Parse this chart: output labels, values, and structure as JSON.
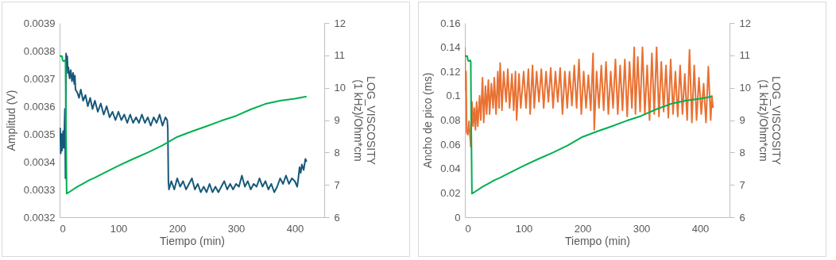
{
  "chart_data": [
    {
      "type": "line",
      "xlabel": "Tiempo (min)",
      "ylabel": "Amplitud (V)",
      "y2label": "LOG_VISCOSITY\n(1 kHz)/Ohm*cm",
      "xlim": [
        0,
        450
      ],
      "xticks": [
        0,
        100,
        200,
        300,
        400
      ],
      "ylim": [
        0.0032,
        0.0039
      ],
      "yticks": [
        0.0032,
        0.0033,
        0.0034,
        0.0035,
        0.0036,
        0.0037,
        0.0038,
        0.0039
      ],
      "y2lim": [
        6,
        12
      ],
      "y2ticks": [
        6,
        7,
        8,
        9,
        10,
        11,
        12
      ],
      "legend": false,
      "grid": false,
      "series": [
        {
          "color": "#17587a",
          "x": [
            0,
            1,
            2,
            3,
            4,
            5,
            6,
            7,
            8,
            9,
            10,
            10.5,
            11,
            12,
            13,
            14,
            15,
            17,
            19,
            21,
            23,
            25,
            26,
            27,
            30,
            33,
            36,
            40,
            44,
            48,
            52,
            56,
            60,
            65,
            70,
            75,
            80,
            85,
            90,
            95,
            100,
            105,
            110,
            115,
            120,
            125,
            130,
            135,
            140,
            145,
            150,
            155,
            160,
            165,
            170,
            175,
            180,
            183,
            184,
            185,
            186,
            190,
            195,
            200,
            205,
            210,
            215,
            220,
            225,
            230,
            235,
            240,
            245,
            250,
            255,
            260,
            265,
            270,
            275,
            280,
            285,
            290,
            295,
            300,
            305,
            310,
            315,
            320,
            325,
            330,
            335,
            340,
            345,
            350,
            355,
            360,
            365,
            370,
            375,
            380,
            385,
            390,
            395,
            400,
            404,
            406,
            408,
            410,
            412,
            415,
            418,
            420
          ],
          "values": [
            0.00348,
            0.00352,
            0.00343,
            0.0035,
            0.00344,
            0.00347,
            0.00351,
            0.00345,
            0.0035,
            0.00359,
            0.00334,
            0.00345,
            0.00379,
            0.00376,
            0.00378,
            0.00372,
            0.00374,
            0.0037,
            0.00373,
            0.00369,
            0.00372,
            0.00368,
            0.00371,
            0.00366,
            0.00365,
            0.00363,
            0.00366,
            0.00362,
            0.00364,
            0.0036,
            0.00363,
            0.00359,
            0.00362,
            0.00358,
            0.00361,
            0.00357,
            0.0036,
            0.00356,
            0.00358,
            0.00355,
            0.00358,
            0.00355,
            0.00357,
            0.00354,
            0.00357,
            0.00354,
            0.00356,
            0.00354,
            0.00357,
            0.00354,
            0.00356,
            0.00353,
            0.00356,
            0.00354,
            0.00357,
            0.00353,
            0.00356,
            0.00355,
            0.00352,
            0.00333,
            0.0033,
            0.00333,
            0.0033,
            0.00334,
            0.00331,
            0.00333,
            0.0033,
            0.00332,
            0.00334,
            0.0033,
            0.00332,
            0.00329,
            0.00331,
            0.00329,
            0.00332,
            0.00329,
            0.00331,
            0.00329,
            0.00331,
            0.00333,
            0.0033,
            0.00332,
            0.0033,
            0.00332,
            0.00331,
            0.00335,
            0.00331,
            0.00333,
            0.0033,
            0.00332,
            0.00331,
            0.00334,
            0.00331,
            0.00333,
            0.0033,
            0.00332,
            0.00329,
            0.00331,
            0.00334,
            0.00332,
            0.00335,
            0.00332,
            0.00334,
            0.00333,
            0.00331,
            0.00334,
            0.00338,
            0.00336,
            0.00339,
            0.00337,
            0.00341,
            0.0034
          ]
        },
        {
          "color": "#00b050",
          "axis": "y2",
          "x": [
            0,
            2,
            4,
            5,
            7,
            9,
            10,
            11,
            12,
            13,
            15,
            20,
            30,
            40,
            50,
            60,
            75,
            100,
            125,
            150,
            175,
            200,
            225,
            250,
            275,
            300,
            325,
            350,
            375,
            400,
            420
          ],
          "values": [
            11,
            10.97,
            10.98,
            10.85,
            10.82,
            10.85,
            10.8,
            8.5,
            6.73,
            6.74,
            6.76,
            6.82,
            6.94,
            7.04,
            7.14,
            7.22,
            7.36,
            7.59,
            7.8,
            8.0,
            8.22,
            8.48,
            8.65,
            8.81,
            8.98,
            9.13,
            9.33,
            9.5,
            9.6,
            9.66,
            9.73
          ]
        }
      ]
    },
    {
      "type": "line",
      "xlabel": "Tiempo (min)",
      "ylabel": "Ancho de pico (ms)",
      "y2label": "LOG_VISCOSITY\n(1 kHz)/Ohm*cm",
      "xlim": [
        0,
        450
      ],
      "xticks": [
        0,
        100,
        200,
        300,
        400
      ],
      "ylim": [
        0,
        0.16
      ],
      "yticks": [
        0,
        0.02,
        0.04,
        0.06,
        0.08,
        0.1,
        0.12,
        0.14,
        0.16
      ],
      "y2lim": [
        6,
        12
      ],
      "y2ticks": [
        6,
        7,
        8,
        9,
        10,
        11,
        12
      ],
      "legend": false,
      "grid": false,
      "series": [
        {
          "color": "#e97132",
          "x": [
            0,
            1,
            2,
            3,
            5,
            7,
            9,
            10,
            12,
            14,
            16,
            18,
            20,
            22,
            25,
            27,
            30,
            32,
            35,
            37,
            40,
            42,
            45,
            48,
            50,
            53,
            56,
            58,
            60,
            63,
            66,
            70,
            73,
            76,
            80,
            83,
            86,
            88,
            92,
            95,
            100,
            104,
            108,
            111,
            115,
            118,
            122,
            126,
            130,
            134,
            138,
            142,
            146,
            150,
            154,
            158,
            162,
            166,
            170,
            174,
            178,
            182,
            186,
            190,
            194,
            198,
            202,
            206,
            210,
            214,
            218,
            220,
            224,
            228,
            232,
            236,
            240,
            244,
            248,
            252,
            256,
            260,
            264,
            268,
            272,
            276,
            280,
            284,
            288,
            290,
            294,
            298,
            302,
            306,
            310,
            314,
            318,
            322,
            326,
            330,
            334,
            338,
            342,
            346,
            350,
            354,
            358,
            362,
            366,
            370,
            374,
            378,
            382,
            386,
            390,
            394,
            398,
            402,
            406,
            410,
            414,
            418,
            420,
            422
          ],
          "values": [
            0.14,
            0.105,
            0.12,
            0.07,
            0.068,
            0.079,
            0.065,
            0.058,
            0.095,
            0.075,
            0.09,
            0.072,
            0.095,
            0.075,
            0.1,
            0.08,
            0.115,
            0.078,
            0.108,
            0.085,
            0.113,
            0.085,
            0.11,
            0.09,
            0.115,
            0.085,
            0.12,
            0.09,
            0.127,
            0.088,
            0.12,
            0.095,
            0.122,
            0.09,
            0.118,
            0.088,
            0.12,
            0.08,
            0.118,
            0.09,
            0.12,
            0.09,
            0.122,
            0.085,
            0.125,
            0.09,
            0.12,
            0.095,
            0.122,
            0.09,
            0.12,
            0.095,
            0.123,
            0.09,
            0.12,
            0.095,
            0.123,
            0.085,
            0.12,
            0.09,
            0.12,
            0.092,
            0.125,
            0.09,
            0.13,
            0.085,
            0.12,
            0.09,
            0.117,
            0.088,
            0.135,
            0.072,
            0.12,
            0.09,
            0.125,
            0.088,
            0.128,
            0.085,
            0.12,
            0.09,
            0.13,
            0.085,
            0.125,
            0.088,
            0.13,
            0.083,
            0.128,
            0.09,
            0.14,
            0.085,
            0.132,
            0.087,
            0.14,
            0.085,
            0.125,
            0.08,
            0.135,
            0.085,
            0.14,
            0.083,
            0.128,
            0.087,
            0.125,
            0.082,
            0.13,
            0.085,
            0.12,
            0.083,
            0.125,
            0.085,
            0.118,
            0.08,
            0.138,
            0.078,
            0.125,
            0.08,
            0.115,
            0.085,
            0.11,
            0.078,
            0.124,
            0.08,
            0.1,
            0.09
          ]
        },
        {
          "color": "#00b050",
          "axis": "y2",
          "x": [
            0,
            2,
            4,
            5,
            7,
            9,
            10,
            11,
            12,
            13,
            15,
            20,
            30,
            40,
            50,
            60,
            75,
            100,
            125,
            150,
            175,
            200,
            225,
            250,
            275,
            300,
            325,
            350,
            375,
            400,
            420
          ],
          "values": [
            11,
            10.97,
            10.98,
            10.85,
            10.82,
            10.85,
            10.8,
            8.5,
            6.73,
            6.74,
            6.76,
            6.82,
            6.94,
            7.04,
            7.14,
            7.22,
            7.36,
            7.59,
            7.8,
            8.0,
            8.22,
            8.48,
            8.65,
            8.81,
            8.98,
            9.13,
            9.33,
            9.5,
            9.6,
            9.66,
            9.73
          ]
        }
      ]
    }
  ]
}
